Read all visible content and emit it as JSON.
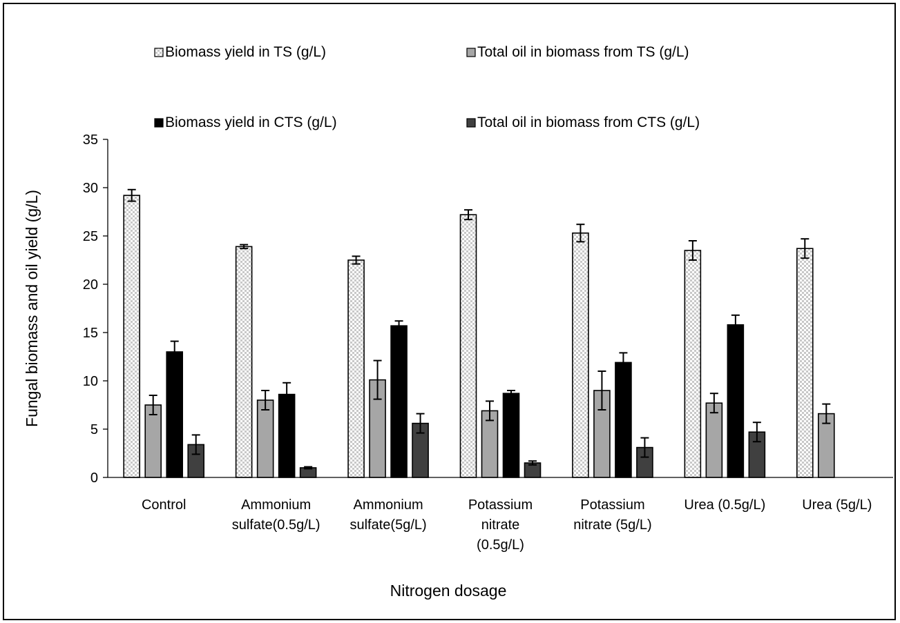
{
  "chart_data": {
    "type": "bar",
    "title": "",
    "xlabel": "Nitrogen dosage",
    "ylabel": "Fungal biomass and oil yield (g/L)",
    "ylim": [
      0,
      35
    ],
    "yticks": [
      "0",
      "5",
      "10",
      "15",
      "20",
      "25",
      "30",
      "35"
    ],
    "grid": false,
    "legend_position": "top",
    "categories": [
      [
        "Control"
      ],
      [
        "Ammonium",
        "sulfate(0.5g/L)"
      ],
      [
        "Ammonium",
        "sulfate(5g/L)"
      ],
      [
        "Potassium",
        "nitrate",
        "(0.5g/L)"
      ],
      [
        "Potassium",
        "nitrate (5g/L)"
      ],
      [
        "Urea (0.5g/L)"
      ],
      [
        "Urea (5g/L)"
      ]
    ],
    "series": [
      {
        "name": "Biomass yield in TS (g/L)",
        "style": "checker",
        "values": [
          29.2,
          23.9,
          22.5,
          27.2,
          25.3,
          23.5,
          23.7
        ],
        "errors": [
          0.6,
          0.2,
          0.4,
          0.5,
          0.9,
          1.0,
          1.0
        ]
      },
      {
        "name": "Total oil in biomass from TS (g/L)",
        "style": "lightgray",
        "values": [
          7.5,
          8.0,
          10.1,
          6.9,
          9.0,
          7.7,
          6.6
        ],
        "errors": [
          1.0,
          1.0,
          2.0,
          1.0,
          2.0,
          1.0,
          1.0
        ]
      },
      {
        "name": "Biomass yield in CTS (g/L)",
        "style": "black",
        "values": [
          13.0,
          8.6,
          15.7,
          8.7,
          11.9,
          15.8,
          null
        ],
        "errors": [
          1.1,
          1.2,
          0.5,
          0.3,
          1.0,
          1.0,
          null
        ]
      },
      {
        "name": "Total oil in biomass from CTS (g/L)",
        "style": "darkgray",
        "values": [
          3.4,
          1.0,
          5.6,
          1.5,
          3.1,
          4.7,
          null
        ],
        "errors": [
          1.0,
          0.1,
          1.0,
          0.2,
          1.0,
          1.0,
          null
        ]
      }
    ],
    "colors": {
      "lightgray": "#a6a6a6",
      "black": "#000000",
      "darkgray": "#404040",
      "checker_light": "#ffffff",
      "checker_dark": "#c8c8c8"
    }
  }
}
